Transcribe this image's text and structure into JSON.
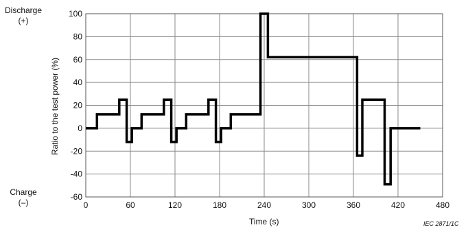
{
  "chart_data": {
    "type": "line",
    "title": "",
    "xlabel": "Time   (s)",
    "ylabel": "Ratio to the test power   (%)",
    "xlim": [
      0,
      480
    ],
    "ylim": [
      -60,
      100
    ],
    "xticks": [
      0,
      60,
      120,
      180,
      240,
      300,
      360,
      420,
      480
    ],
    "yticks": [
      -60,
      -40,
      -20,
      0,
      20,
      40,
      60,
      80,
      100
    ],
    "grid": true,
    "series": [
      {
        "color": "#000000",
        "x": [
          0,
          15,
          15,
          45,
          45,
          55,
          55,
          62,
          62,
          75,
          75,
          105,
          105,
          115,
          115,
          122,
          122,
          135,
          135,
          165,
          165,
          175,
          175,
          182,
          182,
          195,
          195,
          235,
          235,
          245,
          245,
          365,
          365,
          372,
          372,
          402,
          402,
          410,
          410,
          450
        ],
        "y": [
          0,
          0,
          12,
          12,
          25,
          25,
          -12,
          -12,
          0,
          0,
          12,
          12,
          25,
          25,
          -12,
          -12,
          0,
          0,
          12,
          12,
          25,
          25,
          -12,
          -12,
          0,
          0,
          12,
          12,
          100,
          100,
          62,
          62,
          -24,
          -24,
          25,
          25,
          -49,
          -49,
          0,
          0
        ]
      }
    ]
  },
  "labels": {
    "discharge_line1": "Discharge",
    "discharge_line2": "(+)",
    "charge_line1": "Charge",
    "charge_line2": "(–)",
    "figure_id": "IEC   2871/1C"
  }
}
